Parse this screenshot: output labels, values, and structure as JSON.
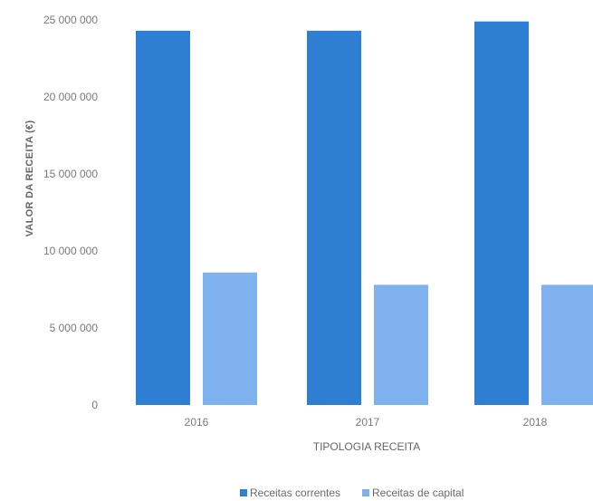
{
  "chart_data": {
    "type": "bar",
    "title": "",
    "xlabel": "TIPOLOGIA RECEITA",
    "ylabel": "VALOR DA RECEITA (€)",
    "categories": [
      "2016",
      "2017",
      "2018"
    ],
    "series": [
      {
        "name": "Receitas correntes",
        "values": [
          24300000,
          24300000,
          24900000
        ],
        "color": "#2e7fd3"
      },
      {
        "name": "Receitas de capital",
        "values": [
          8600000,
          7800000,
          7800000
        ],
        "color": "#7fb2ef"
      }
    ],
    "ylim": [
      0,
      25000000
    ],
    "y_ticks": [
      0,
      5000000,
      10000000,
      15000000,
      20000000,
      25000000
    ],
    "y_tick_labels": [
      "0",
      "5 000 000",
      "10 000 000",
      "15 000 000",
      "20 000 000",
      "25 000 000"
    ],
    "grid": false,
    "legend_position": "bottom"
  }
}
